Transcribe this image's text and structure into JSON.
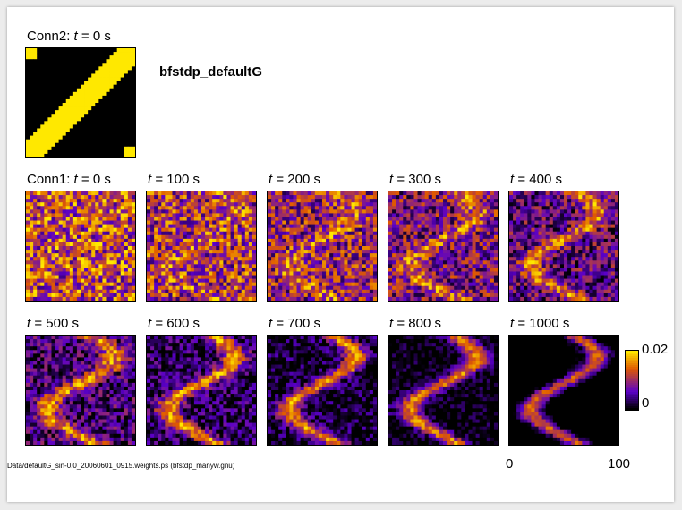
{
  "figure": {
    "title": "bfstdp_defaultG",
    "footer": "Data/defaultG_sin-0.0_20060601_0915.weights.ps (bfstdp_manyw.gnu)"
  },
  "colors": {
    "background": "#000000",
    "low": "#5a00c8",
    "mid": "#e05a00",
    "high": "#ffe800",
    "panel_border": "#000000"
  },
  "chart_data": {
    "type": "heatmap",
    "colorbar": {
      "min": 0,
      "max": 0.02,
      "min_label": "0",
      "max_label": "0.02"
    },
    "x_ticks": [
      "0",
      "100"
    ],
    "panels": [
      {
        "id": "conn2-0",
        "prefix": "Conn2: ",
        "var": "t",
        "eq": " = ",
        "value": "0 s",
        "pattern": "diagonal"
      },
      {
        "id": "conn1-0",
        "prefix": "Conn1: ",
        "var": "t",
        "eq": " = ",
        "value": "0 s",
        "stage": 0
      },
      {
        "id": "conn1-100",
        "prefix": "",
        "var": "t",
        "eq": " = ",
        "value": "100 s",
        "stage": 0.1
      },
      {
        "id": "conn1-200",
        "prefix": "",
        "var": "t",
        "eq": " = ",
        "value": "200 s",
        "stage": 0.2
      },
      {
        "id": "conn1-300",
        "prefix": "",
        "var": "t",
        "eq": " = ",
        "value": "300 s",
        "stage": 0.3
      },
      {
        "id": "conn1-400",
        "prefix": "",
        "var": "t",
        "eq": " = ",
        "value": "400 s",
        "stage": 0.4
      },
      {
        "id": "conn1-500",
        "prefix": "",
        "var": "t",
        "eq": " = ",
        "value": "500 s",
        "stage": 0.5
      },
      {
        "id": "conn1-600",
        "prefix": "",
        "var": "t",
        "eq": " = ",
        "value": "600 s",
        "stage": 0.6
      },
      {
        "id": "conn1-700",
        "prefix": "",
        "var": "t",
        "eq": " = ",
        "value": "700 s",
        "stage": 0.7
      },
      {
        "id": "conn1-800",
        "prefix": "",
        "var": "t",
        "eq": " = ",
        "value": "800 s",
        "stage": 0.8
      },
      {
        "id": "conn1-1000",
        "prefix": "",
        "var": "t",
        "eq": " = ",
        "value": "1000 s",
        "stage": 1.0
      }
    ]
  }
}
